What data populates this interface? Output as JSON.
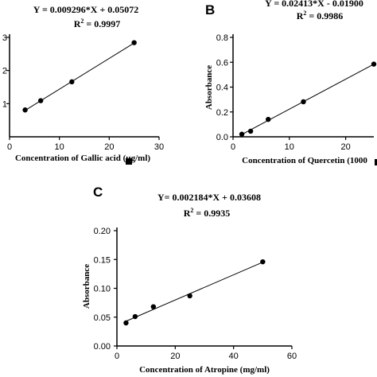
{
  "chart_data": [
    {
      "panel": "",
      "type": "scatter",
      "equation": "Y = 0.009296*X + 0.05072",
      "r2_label": "R",
      "r2_sup": "2",
      "r2_value": " = 0.9997",
      "xlabel": "Concentration of Gallic acid (µg/ml)",
      "ylabel": "",
      "xlim": [
        0,
        30
      ],
      "ylim": [
        0,
        0.3
      ],
      "x_ticks": [
        0,
        10,
        20,
        30
      ],
      "y_ticks": [
        0.1,
        0.2,
        0.3
      ],
      "y_tick_labels": [
        "1",
        "2",
        "3"
      ],
      "points": [
        {
          "x": 3.125,
          "y": 0.081
        },
        {
          "x": 6.25,
          "y": 0.109
        },
        {
          "x": 12.5,
          "y": 0.166
        },
        {
          "x": 25,
          "y": 0.284
        }
      ],
      "fit": {
        "slope": 0.009296,
        "intercept": 0.05072
      }
    },
    {
      "panel": "B",
      "type": "scatter",
      "equation": "Y = 0.02413*X - 0.01900",
      "r2_label": "R",
      "r2_sup": "2",
      "r2_value": " = 0.9986",
      "xlabel": "Concentration of Quercetin (1000",
      "ylabel": "Absorbance",
      "xlim": [
        0,
        25
      ],
      "ylim": [
        0,
        0.8
      ],
      "x_ticks": [
        0,
        10,
        20
      ],
      "y_ticks": [
        0,
        0.2,
        0.4,
        0.6,
        0.8
      ],
      "y_tick_labels": [
        "0.0",
        "0.2",
        "0.4",
        "0.6",
        "0.8"
      ],
      "points": [
        {
          "x": 1.5625,
          "y": 0.021
        },
        {
          "x": 3.125,
          "y": 0.045
        },
        {
          "x": 6.25,
          "y": 0.14
        },
        {
          "x": 12.5,
          "y": 0.282
        },
        {
          "x": 25,
          "y": 0.585
        }
      ],
      "fit": {
        "slope": 0.02413,
        "intercept": -0.019
      }
    },
    {
      "panel": "C",
      "type": "scatter",
      "equation": "Y= 0.002184*X + 0.03608",
      "r2_label": "R",
      "r2_sup": "2",
      "r2_value": " = 0.9935",
      "xlabel": "Concentration of Atropine (mg/ml)",
      "ylabel": "Absorbance",
      "xlim": [
        0,
        60
      ],
      "ylim": [
        0,
        0.2
      ],
      "x_ticks": [
        0,
        20,
        40,
        60
      ],
      "y_ticks": [
        0,
        0.05,
        0.1,
        0.15,
        0.2
      ],
      "y_tick_labels": [
        "0.00",
        "0.05",
        "0.10",
        "0.15",
        "0.20"
      ],
      "points": [
        {
          "x": 3.125,
          "y": 0.04
        },
        {
          "x": 6.25,
          "y": 0.051
        },
        {
          "x": 12.5,
          "y": 0.068
        },
        {
          "x": 25,
          "y": 0.087
        },
        {
          "x": 50,
          "y": 0.146
        }
      ],
      "fit": {
        "slope": 0.002184,
        "intercept": 0.03608
      }
    }
  ]
}
